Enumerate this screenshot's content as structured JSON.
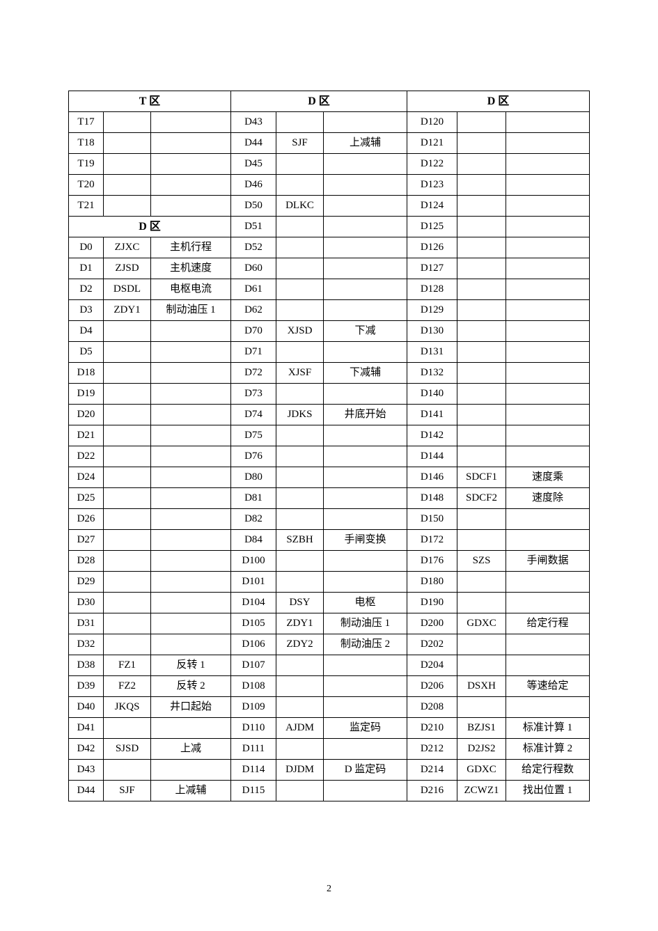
{
  "pageNumber": "2",
  "sectionHeaders": {
    "T": "T   区",
    "D": "D   区"
  },
  "colA": [
    [
      "T17",
      "",
      ""
    ],
    [
      "T18",
      "",
      ""
    ],
    [
      "T19",
      "",
      ""
    ],
    [
      "T20",
      "",
      ""
    ],
    [
      "T21",
      "",
      ""
    ]
  ],
  "colA_D": [
    [
      "D0",
      "ZJXC",
      "主机行程"
    ],
    [
      "D1",
      "ZJSD",
      "主机速度"
    ],
    [
      "D2",
      "DSDL",
      "电枢电流"
    ],
    [
      "D3",
      "ZDY1",
      "制动油压 1"
    ],
    [
      "D4",
      "",
      ""
    ],
    [
      "D5",
      "",
      ""
    ],
    [
      "D18",
      "",
      ""
    ],
    [
      "D19",
      "",
      ""
    ],
    [
      "D20",
      "",
      ""
    ],
    [
      "D21",
      "",
      ""
    ],
    [
      "D22",
      "",
      ""
    ],
    [
      "D24",
      "",
      ""
    ],
    [
      "D25",
      "",
      ""
    ],
    [
      "D26",
      "",
      ""
    ],
    [
      "D27",
      "",
      ""
    ],
    [
      "D28",
      "",
      ""
    ],
    [
      "D29",
      "",
      ""
    ],
    [
      "D30",
      "",
      ""
    ],
    [
      "D31",
      "",
      ""
    ],
    [
      "D32",
      "",
      ""
    ],
    [
      "D38",
      "FZ1",
      "反转 1"
    ],
    [
      "D39",
      "FZ2",
      "反转 2"
    ],
    [
      "D40",
      "JKQS",
      "井口起始"
    ],
    [
      "D41",
      "",
      ""
    ],
    [
      "D42",
      "SJSD",
      "上减"
    ],
    [
      "D43",
      "",
      ""
    ],
    [
      "D44",
      "SJF",
      "上减辅"
    ]
  ],
  "colB": [
    [
      "D43",
      "",
      ""
    ],
    [
      "D44",
      "SJF",
      "上减辅"
    ],
    [
      "D45",
      "",
      ""
    ],
    [
      "D46",
      "",
      ""
    ],
    [
      "D50",
      "DLKC",
      ""
    ],
    [
      "D51",
      "",
      ""
    ],
    [
      "D52",
      "",
      ""
    ],
    [
      "D60",
      "",
      ""
    ],
    [
      "D61",
      "",
      ""
    ],
    [
      "D62",
      "",
      ""
    ],
    [
      "D70",
      "XJSD",
      "下减"
    ],
    [
      "D71",
      "",
      ""
    ],
    [
      "D72",
      "XJSF",
      "下减辅"
    ],
    [
      "D73",
      "",
      ""
    ],
    [
      "D74",
      "JDKS",
      "井底开始"
    ],
    [
      "D75",
      "",
      ""
    ],
    [
      "D76",
      "",
      ""
    ],
    [
      "D80",
      "",
      ""
    ],
    [
      "D81",
      "",
      ""
    ],
    [
      "D82",
      "",
      ""
    ],
    [
      "D84",
      "SZBH",
      "手闸变换"
    ],
    [
      "D100",
      "",
      ""
    ],
    [
      "D101",
      "",
      ""
    ],
    [
      "D104",
      "DSY",
      "电枢"
    ],
    [
      "D105",
      "ZDY1",
      "制动油压 1"
    ],
    [
      "D106",
      "ZDY2",
      "制动油压 2"
    ],
    [
      "D107",
      "",
      ""
    ],
    [
      "D108",
      "",
      ""
    ],
    [
      "D109",
      "",
      ""
    ],
    [
      "D110",
      "AJDM",
      "监定码"
    ],
    [
      "D111",
      "",
      ""
    ],
    [
      "D114",
      "DJDM",
      "D 监定码"
    ],
    [
      "D115",
      "",
      ""
    ]
  ],
  "colC": [
    [
      "D120",
      "",
      ""
    ],
    [
      "D121",
      "",
      ""
    ],
    [
      "D122",
      "",
      ""
    ],
    [
      "D123",
      "",
      ""
    ],
    [
      "D124",
      "",
      ""
    ],
    [
      "D125",
      "",
      ""
    ],
    [
      "D126",
      "",
      ""
    ],
    [
      "D127",
      "",
      ""
    ],
    [
      "D128",
      "",
      ""
    ],
    [
      "D129",
      "",
      ""
    ],
    [
      "D130",
      "",
      ""
    ],
    [
      "D131",
      "",
      ""
    ],
    [
      "D132",
      "",
      ""
    ],
    [
      "D140",
      "",
      ""
    ],
    [
      "D141",
      "",
      ""
    ],
    [
      "D142",
      "",
      ""
    ],
    [
      "D144",
      "",
      ""
    ],
    [
      "D146",
      "SDCF1",
      "速度乘"
    ],
    [
      "D148",
      "SDCF2",
      "速度除"
    ],
    [
      "D150",
      "",
      ""
    ],
    [
      "D172",
      "",
      ""
    ],
    [
      "D176",
      "SZS",
      "手闸数据"
    ],
    [
      "D180",
      "",
      ""
    ],
    [
      "D190",
      "",
      ""
    ],
    [
      "D200",
      "GDXC",
      "给定行程"
    ],
    [
      "D202",
      "",
      ""
    ],
    [
      "D204",
      "",
      ""
    ],
    [
      "D206",
      "DSXH",
      "等速给定"
    ],
    [
      "D208",
      "",
      ""
    ],
    [
      "D210",
      "BZJS1",
      "标准计算 1"
    ],
    [
      "D212",
      "D2JS2",
      "标准计算 2"
    ],
    [
      "D214",
      "GDXC",
      "给定行程数"
    ],
    [
      "D216",
      "ZCWZ1",
      "找出位置 1"
    ]
  ]
}
